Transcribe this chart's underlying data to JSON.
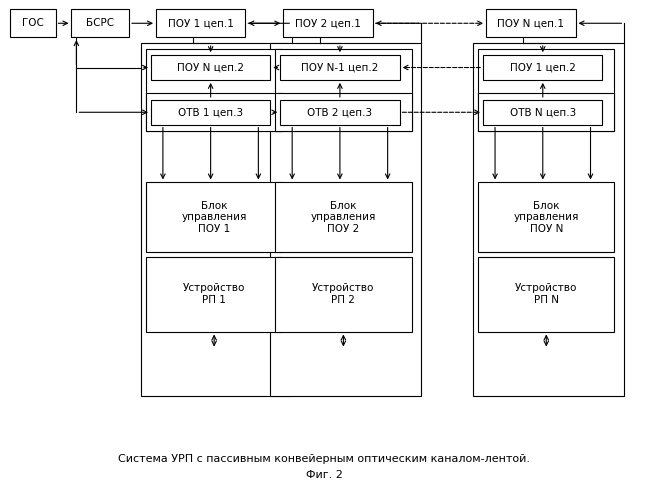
{
  "title_line1": "Система УРП с пассивным конвейерным оптическим каналом-лентой.",
  "title_line2": "Фиг. 2",
  "bg_color": "#ffffff",
  "line_color": "#000000",
  "font_size": 7.5,
  "labels": {
    "gos": "ГОС",
    "bsrs": "БСРС",
    "p1c1": "ПОУ 1 цеп.1",
    "p2c1": "ПОУ 2 цеп.1",
    "pNc1": "ПОУ N цеп.1",
    "pNc2": "ПОУ N цеп.2",
    "pN1c2": "ПОУ N-1 цеп.2",
    "p1c2": "ПОУ 1 цеп.2",
    "otv1": "ОТВ 1 цеп.3",
    "otv2": "ОТВ 2 цеп.3",
    "otvN": "ОТВ N цеп.3",
    "bu1": "Блок\nуправления\nПОУ 1",
    "bu2": "Блок\nуправления\nПОУ 2",
    "buN": "Блок\nуправления\nПОУ N",
    "urp1": "Устройство\nРП 1",
    "urp2": "Устройство\nРП 2",
    "urpN": "Устройство\nРП N"
  }
}
